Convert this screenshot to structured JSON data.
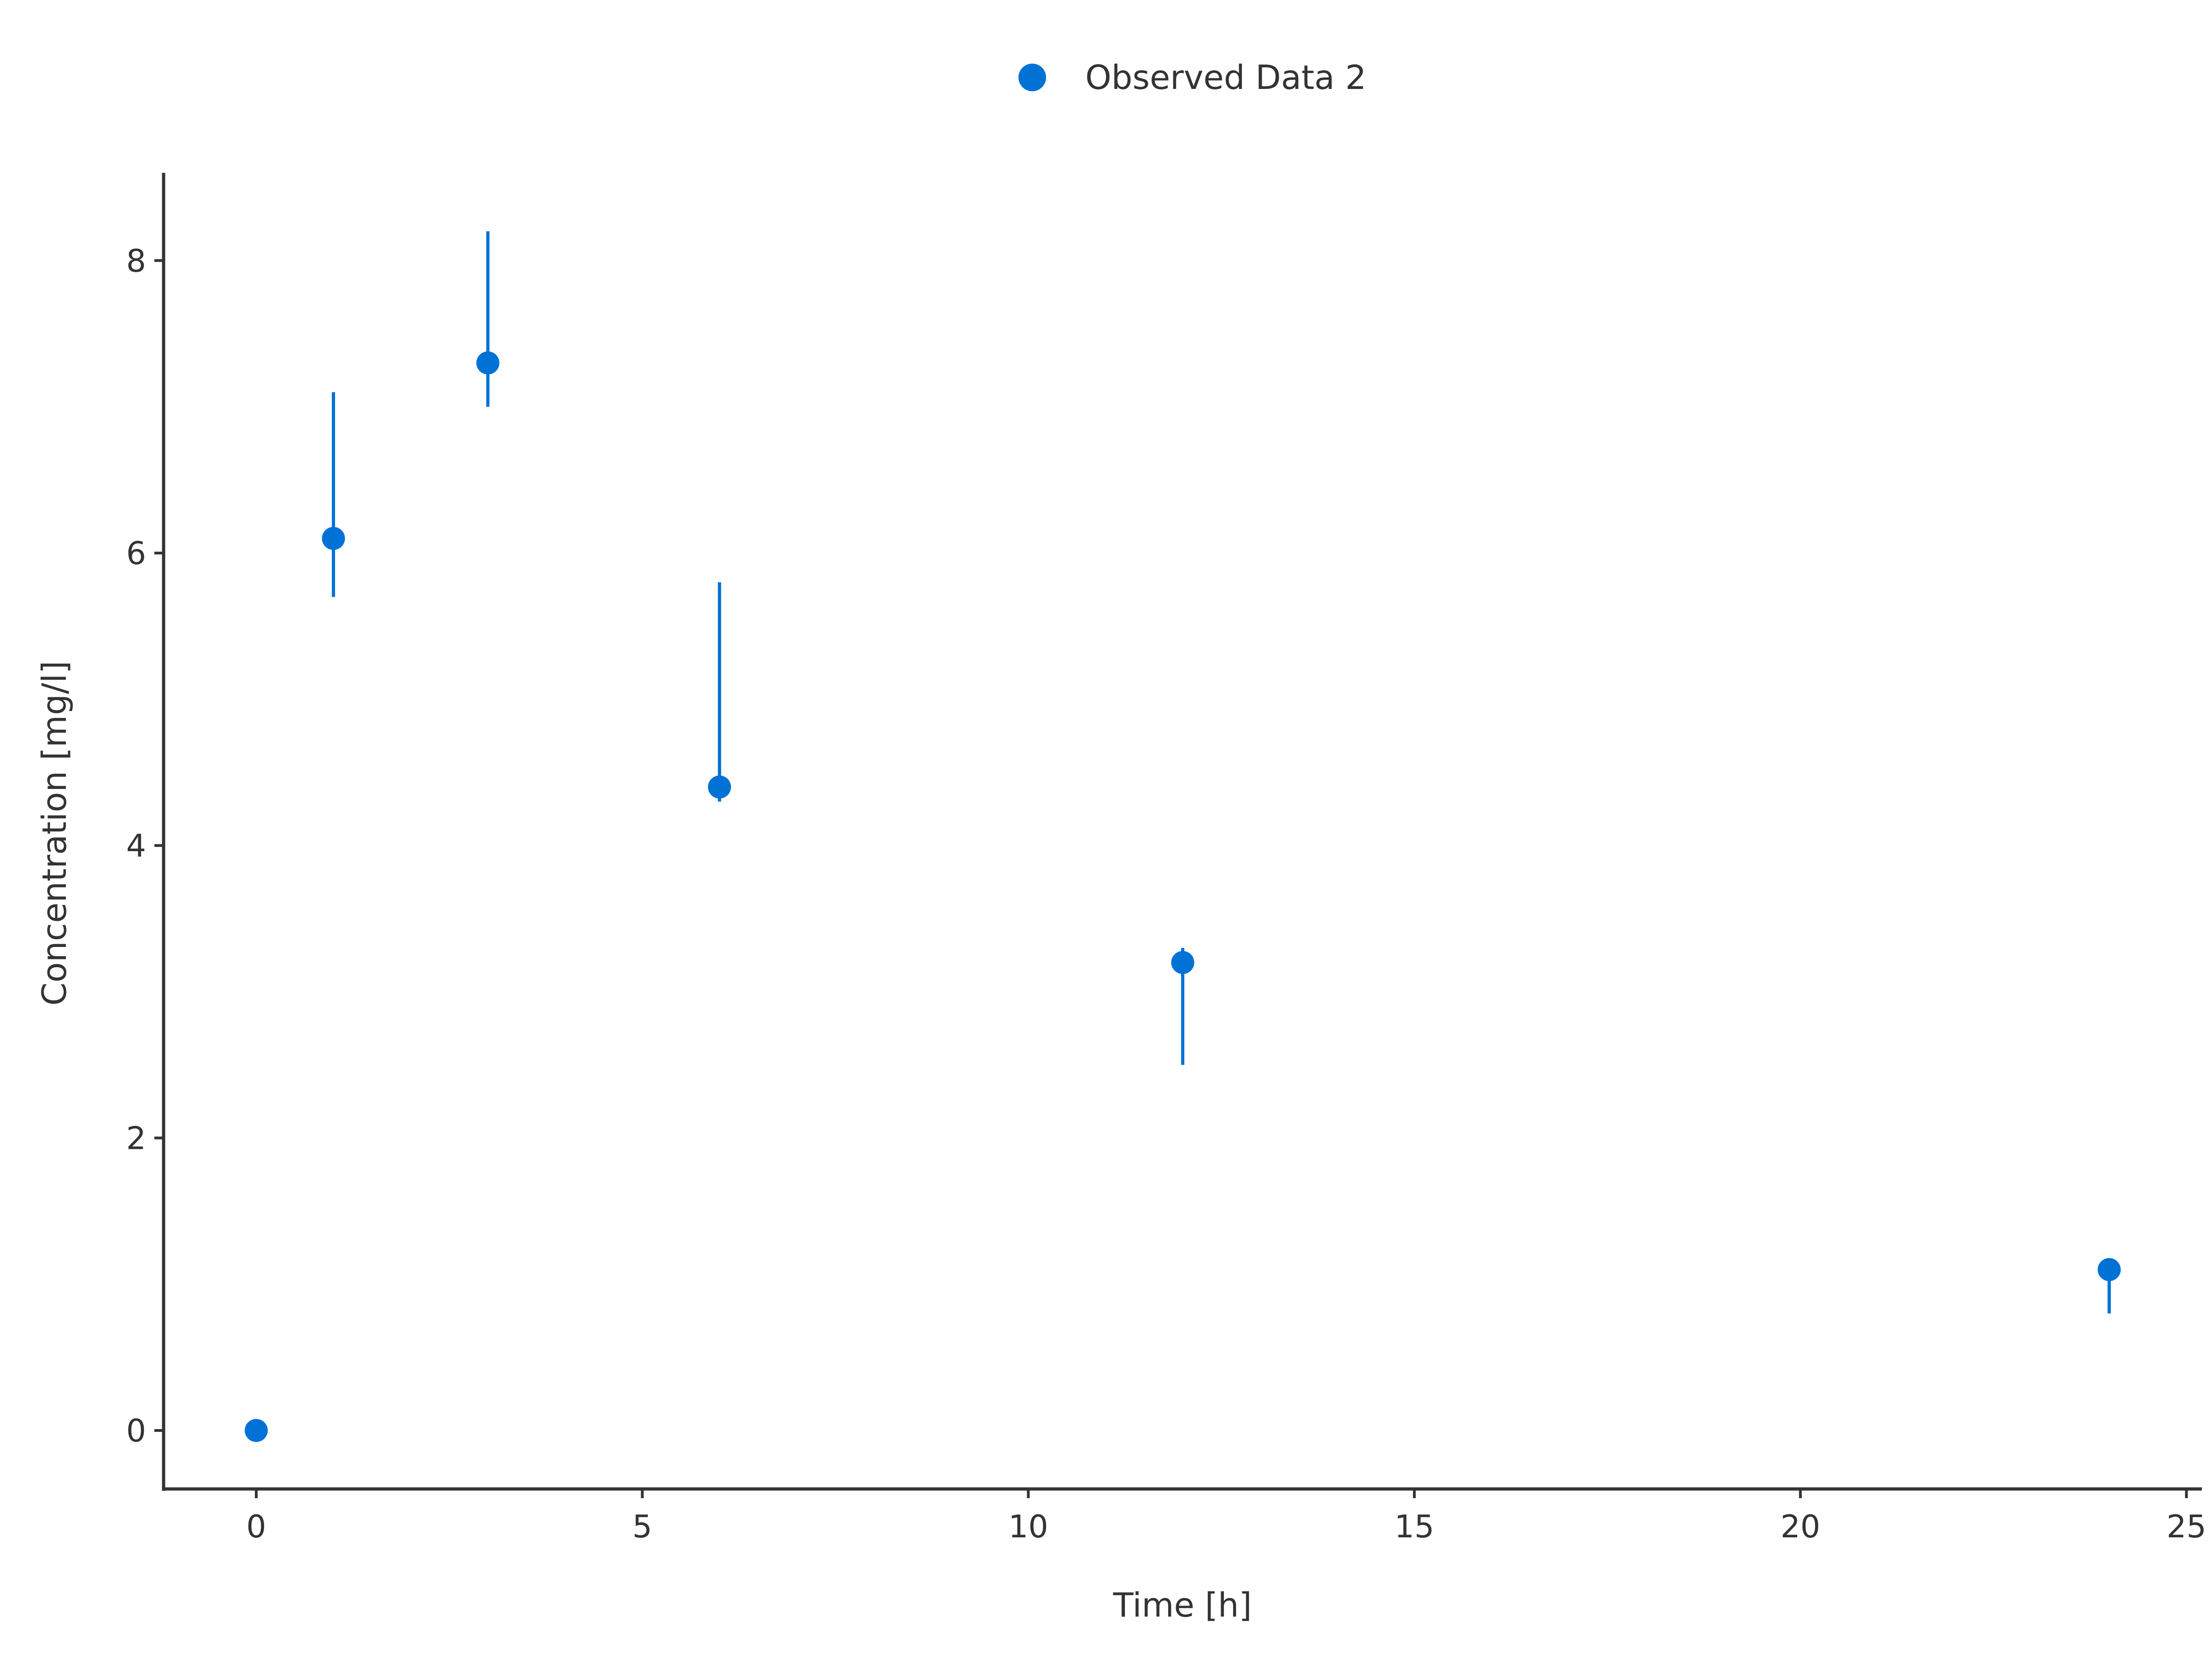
{
  "chart_data": {
    "type": "scatter",
    "xlabel": "Time [h]",
    "ylabel": "Concentration [mg/l]",
    "xlim": [
      -1.2,
      25.2
    ],
    "ylim": [
      -0.4,
      8.6
    ],
    "xticks": [
      0,
      5,
      10,
      15,
      20,
      25
    ],
    "yticks": [
      0,
      2,
      4,
      6,
      8
    ],
    "grid": false,
    "legend_position": "top-center",
    "series": [
      {
        "name": "Observed Data 2",
        "color": "#0072d6",
        "marker": "circle",
        "points": [
          {
            "x": 0,
            "y": 0,
            "err_low": 0,
            "err_high": 0
          },
          {
            "x": 1,
            "y": 6.1,
            "err_low": 5.7,
            "err_high": 7.1
          },
          {
            "x": 3,
            "y": 7.3,
            "err_low": 7.0,
            "err_high": 8.2
          },
          {
            "x": 6,
            "y": 4.4,
            "err_low": 4.3,
            "err_high": 5.8
          },
          {
            "x": 12,
            "y": 3.2,
            "err_low": 2.5,
            "err_high": 3.3
          },
          {
            "x": 24,
            "y": 1.1,
            "err_low": 0.8,
            "err_high": 1.1
          }
        ]
      }
    ]
  }
}
